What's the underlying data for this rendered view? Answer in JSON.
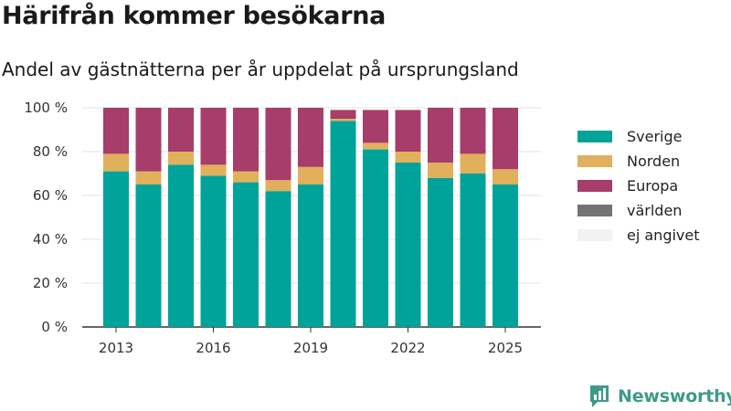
{
  "header": {
    "title": "Härifrån kommer besökarna",
    "subtitle": "Andel av gästnätterna per år uppdelat på ursprungsland"
  },
  "logo": {
    "text": "Newsworthy",
    "icon": "bar-chart-icon",
    "color": "#3d9a8a"
  },
  "chart_data": {
    "type": "bar",
    "stacked": true,
    "categories": [
      "2013",
      "2014",
      "2015",
      "2016",
      "2017",
      "2018",
      "2019",
      "2020",
      "2021",
      "2022",
      "2023",
      "2024",
      "2025"
    ],
    "x_tick_labels": [
      "2013",
      "2016",
      "2019",
      "2022",
      "2025"
    ],
    "y_tick_labels": [
      "0 %",
      "20 %",
      "40 %",
      "60 %",
      "80 %",
      "100 %"
    ],
    "ylim": [
      0,
      100
    ],
    "grid": true,
    "legend_position": "right",
    "series": [
      {
        "name": "Sverige",
        "color": "#00a39a",
        "values": [
          71,
          65,
          74,
          69,
          66,
          62,
          65,
          94,
          81,
          75,
          68,
          70,
          65
        ]
      },
      {
        "name": "Norden",
        "color": "#e0b05c",
        "values": [
          8,
          6,
          6,
          5,
          5,
          5,
          8,
          1,
          3,
          5,
          7,
          9,
          7
        ]
      },
      {
        "name": "Europa",
        "color": "#a63d6a",
        "values": [
          21,
          29,
          20,
          26,
          29,
          33,
          27,
          4,
          15,
          19,
          25,
          21,
          28
        ]
      },
      {
        "name": "världen",
        "color": "#737373",
        "values": [
          0,
          0,
          0,
          0,
          0,
          0,
          0,
          0,
          0,
          0,
          0,
          0,
          0
        ]
      },
      {
        "name": "ej angivet",
        "color": "#f2f2f2",
        "values": [
          0,
          0,
          0,
          0,
          0,
          0,
          0,
          0,
          0,
          0,
          0,
          0,
          0
        ]
      }
    ]
  }
}
